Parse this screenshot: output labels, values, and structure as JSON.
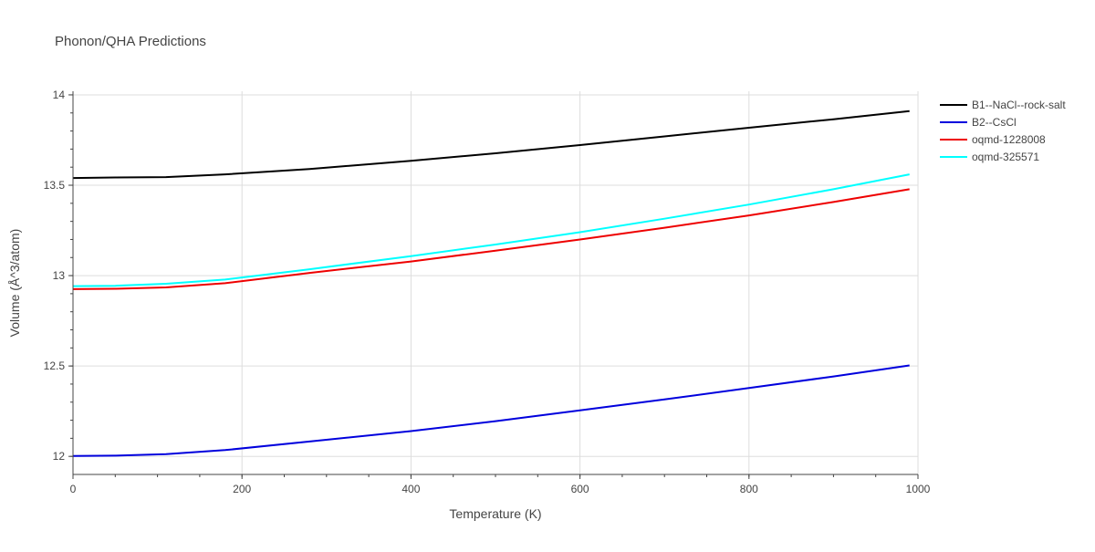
{
  "chart_data": {
    "type": "line",
    "title": "Phonon/QHA Predictions",
    "xlabel": "Temperature (K)",
    "ylabel": "Volume (Å^3/atom)",
    "xlim": [
      0,
      1000
    ],
    "ylim": [
      11.9,
      14.02
    ],
    "xticks": [
      0,
      200,
      400,
      600,
      800,
      1000
    ],
    "yticks": [
      12,
      12.5,
      13,
      13.5,
      14
    ],
    "xtick_labels": [
      "0",
      "200",
      "400",
      "600",
      "800",
      "1000"
    ],
    "ytick_labels": [
      "12",
      "12.5",
      "13",
      "13.5",
      "14"
    ],
    "grid": true,
    "legend_position": "top-right",
    "x": [
      0,
      50,
      110,
      180,
      280,
      400,
      500,
      600,
      700,
      800,
      900,
      990
    ],
    "series": [
      {
        "name": "B1--NaCl--rock-salt",
        "color": "#000000",
        "values": [
          13.54,
          13.543,
          13.545,
          13.56,
          13.59,
          13.635,
          13.677,
          13.722,
          13.77,
          13.818,
          13.865,
          13.91
        ]
      },
      {
        "name": "B2--CsCl",
        "color": "#0000dd",
        "values": [
          12.002,
          12.004,
          12.012,
          12.035,
          12.082,
          12.14,
          12.195,
          12.255,
          12.315,
          12.378,
          12.442,
          12.503
        ]
      },
      {
        "name": "oqmd-1228008",
        "color": "#ee0000",
        "values": [
          12.925,
          12.927,
          12.935,
          12.958,
          13.015,
          13.078,
          13.138,
          13.2,
          13.265,
          13.333,
          13.407,
          13.478
        ]
      },
      {
        "name": "oqmd-325571",
        "color": "#00ffff",
        "values": [
          12.942,
          12.944,
          12.955,
          12.978,
          13.035,
          13.108,
          13.172,
          13.24,
          13.315,
          13.393,
          13.478,
          13.56
        ]
      }
    ]
  }
}
